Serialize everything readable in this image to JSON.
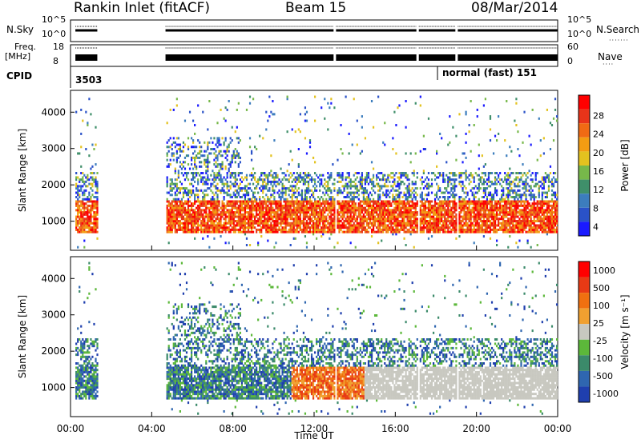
{
  "header": {
    "title": "Rankin Inlet (fitACF)",
    "beam": "Beam 15",
    "date": "08/Mar/2014"
  },
  "top_panels": {
    "nsky_label": "N.Sky",
    "nsky_ticks": [
      "10^5",
      "10^0"
    ],
    "nsearch_label": "N.Search",
    "nsearch_ticks": [
      "10^5",
      "10^0"
    ],
    "freq_label": "Freq.",
    "freq_unit": "[MHz]",
    "freq_ticks": [
      "18",
      "8"
    ],
    "nave_label": "Nave",
    "nave_ticks": [
      "60",
      "0"
    ],
    "cpid_label": "CPID",
    "cpid_left": "3503",
    "cpid_right": "normal (fast) 151"
  },
  "chart_data": [
    {
      "type": "heatmap",
      "title": "",
      "xlabel": "Time UT",
      "ylabel": "Slant Range [km]",
      "x_ticks": [
        "00:00",
        "04:00",
        "08:00",
        "12:00",
        "16:00",
        "20:00",
        "00:00"
      ],
      "y_ticks": [
        "1000",
        "2000",
        "3000",
        "4000"
      ],
      "ylim": [
        200,
        4600
      ],
      "colorbar": {
        "label": "Power [dB]",
        "ticks": [
          "4",
          "8",
          "12",
          "16",
          "20",
          "24",
          "28"
        ],
        "colors": [
          "#1a1aff",
          "#2a52c8",
          "#3c7dbd",
          "#3f8f6a",
          "#77b84a",
          "#e3c21f",
          "#f39c12",
          "#f06a14",
          "#e8341a",
          "#ff0000"
        ]
      }
    },
    {
      "type": "heatmap",
      "title": "",
      "xlabel": "Time UT",
      "ylabel": "Slant Range [km]",
      "x_ticks": [
        "00:00",
        "04:00",
        "08:00",
        "12:00",
        "16:00",
        "20:00",
        "00:00"
      ],
      "y_ticks": [
        "1000",
        "2000",
        "3000",
        "4000"
      ],
      "ylim": [
        200,
        4600
      ],
      "colorbar": {
        "label": "Velocity [m s⁻¹]",
        "ticks": [
          "1000",
          "500",
          "100",
          "25",
          "-25",
          "-100",
          "-500",
          "-1000"
        ],
        "colors": [
          "#1f3fae",
          "#2f66b0",
          "#3b8a6a",
          "#5cb83a",
          "#c8c8c0",
          "#f0a030",
          "#f07010",
          "#e83a15",
          "#ff0000"
        ]
      }
    }
  ]
}
